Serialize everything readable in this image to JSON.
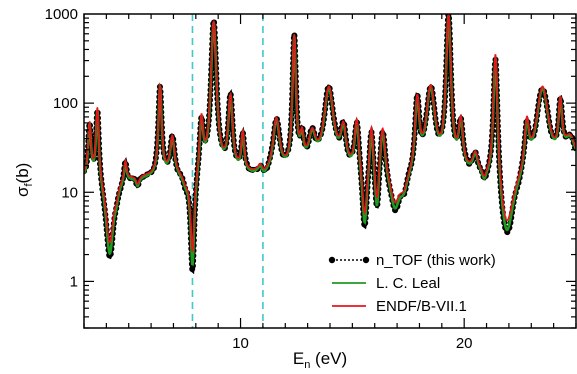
{
  "chart_data": {
    "type": "line",
    "title": "",
    "xlabel": {
      "main": "E",
      "sub": "n",
      "unit": " (eV)"
    },
    "ylabel": {
      "main": "σ",
      "sub": "f",
      "unit": "(b)"
    },
    "x_scale": "linear",
    "y_scale": "log",
    "xlim": [
      3.0,
      25.0
    ],
    "ylim": [
      0.3,
      1000
    ],
    "x_major_ticks": [
      10,
      20
    ],
    "x_tick_labels": [
      "10",
      "20"
    ],
    "y_major_ticks": [
      1,
      10,
      100,
      1000
    ],
    "y_tick_labels": [
      "1",
      "10",
      "100",
      "1000"
    ],
    "grid": false,
    "legend_position": "bottom-right",
    "reference_lines": [
      {
        "x": 7.85,
        "color": "#3fc9c9",
        "style": "dashed"
      },
      {
        "x": 11.0,
        "color": "#3fc9c9",
        "style": "dashed"
      }
    ],
    "baseline": 15,
    "peaks": [
      {
        "x": 3.25,
        "y": 60,
        "w": 0.08
      },
      {
        "x": 3.6,
        "y": 100,
        "w": 0.08
      },
      {
        "x": 4.45,
        "y": 12,
        "w": 0.1
      },
      {
        "x": 4.85,
        "y": 25,
        "w": 0.07
      },
      {
        "x": 5.4,
        "y": 12,
        "w": 0.08
      },
      {
        "x": 5.75,
        "y": 15,
        "w": 0.12
      },
      {
        "x": 6.4,
        "y": 150,
        "w": 0.09
      },
      {
        "x": 6.95,
        "y": 40,
        "w": 0.12
      },
      {
        "x": 7.55,
        "y": 12,
        "w": 0.15
      },
      {
        "x": 8.25,
        "y": 60,
        "w": 0.1
      },
      {
        "x": 8.8,
        "y": 750,
        "w": 0.16
      },
      {
        "x": 9.55,
        "y": 100,
        "w": 0.12
      },
      {
        "x": 10.1,
        "y": 40,
        "w": 0.08
      },
      {
        "x": 10.9,
        "y": 20,
        "w": 0.15
      },
      {
        "x": 11.6,
        "y": 60,
        "w": 0.18
      },
      {
        "x": 12.4,
        "y": 450,
        "w": 0.1
      },
      {
        "x": 12.75,
        "y": 30,
        "w": 0.1
      },
      {
        "x": 13.2,
        "y": 35,
        "w": 0.2
      },
      {
        "x": 13.95,
        "y": 130,
        "w": 0.28
      },
      {
        "x": 14.6,
        "y": 40,
        "w": 0.15
      },
      {
        "x": 15.2,
        "y": 60,
        "w": 0.12
      },
      {
        "x": 15.85,
        "y": 60,
        "w": 0.1
      },
      {
        "x": 16.35,
        "y": 60,
        "w": 0.14
      },
      {
        "x": 17.3,
        "y": 10,
        "w": 0.2
      },
      {
        "x": 17.9,
        "y": 90,
        "w": 0.12
      },
      {
        "x": 18.5,
        "y": 130,
        "w": 0.25
      },
      {
        "x": 19.3,
        "y": 750,
        "w": 0.14
      },
      {
        "x": 19.85,
        "y": 50,
        "w": 0.12
      },
      {
        "x": 20.5,
        "y": 25,
        "w": 0.15
      },
      {
        "x": 20.9,
        "y": 12,
        "w": 0.1
      },
      {
        "x": 21.4,
        "y": 500,
        "w": 0.12
      },
      {
        "x": 22.8,
        "y": 50,
        "w": 0.12
      },
      {
        "x": 23.5,
        "y": 140,
        "w": 0.35
      },
      {
        "x": 24.3,
        "y": 60,
        "w": 0.1
      },
      {
        "x": 24.75,
        "y": 35,
        "w": 0.35
      }
    ],
    "dips": [
      {
        "x": 4.15,
        "y": 2.0,
        "w": 0.2
      },
      {
        "x": 7.85,
        "y": 1.3,
        "w": 0.1
      },
      {
        "x": 11.0,
        "y": 12,
        "w": 0.2
      },
      {
        "x": 15.55,
        "y": 3.2,
        "w": 0.12
      },
      {
        "x": 16.1,
        "y": 4.5,
        "w": 0.1
      },
      {
        "x": 16.9,
        "y": 6.0,
        "w": 0.25
      },
      {
        "x": 21.9,
        "y": 2.7,
        "w": 0.35
      }
    ],
    "series": [
      {
        "name": "n_TOF (this work)",
        "color": "#000000",
        "style": "dotted-markers"
      },
      {
        "name": "L. C. Leal",
        "color": "#1f9a1f",
        "style": "line"
      },
      {
        "name": "ENDF/B-VII.1",
        "color": "#e8141c",
        "style": "line"
      }
    ]
  }
}
